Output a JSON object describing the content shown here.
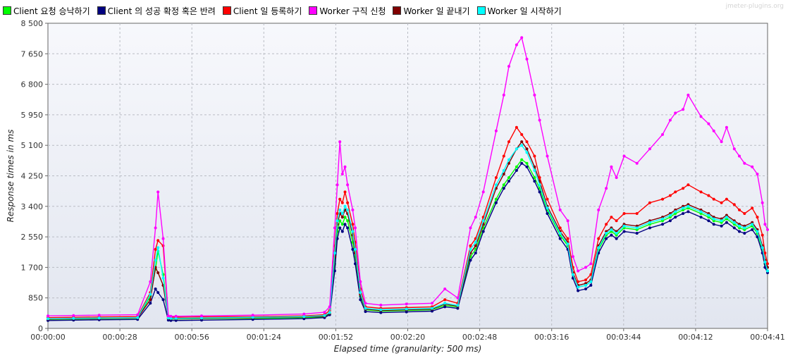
{
  "watermark": "jmeter-plugins.org",
  "chart_data": {
    "type": "line",
    "title": "",
    "xlabel": "Elapsed time (granularity: 500 ms)",
    "ylabel": "Response times in ms",
    "ylim": [
      0,
      8500
    ],
    "xlim_seconds": [
      0,
      281
    ],
    "y_ticks": [
      "0",
      "850",
      "1 700",
      "2 550",
      "3 400",
      "4 250",
      "5 100",
      "5 950",
      "6 800",
      "7 650",
      "8 500"
    ],
    "x_ticks": [
      "00:00:00",
      "00:00:28",
      "00:00:56",
      "00:01:24",
      "00:01:52",
      "00:02:20",
      "00:02:48",
      "00:03:16",
      "00:03:44",
      "00:04:12",
      "00:04:41"
    ],
    "grid": true,
    "legend_position": "top",
    "x_seconds": [
      0,
      10,
      20,
      35,
      40,
      42,
      43,
      45,
      47,
      48,
      50,
      60,
      80,
      100,
      108,
      110,
      112,
      113,
      114,
      115,
      116,
      117,
      119,
      120,
      122,
      124,
      130,
      140,
      150,
      155,
      160,
      165,
      167,
      170,
      175,
      178,
      180,
      183,
      185,
      187,
      190,
      192,
      195,
      200,
      203,
      205,
      207,
      210,
      212,
      215,
      218,
      220,
      222,
      225,
      230,
      235,
      240,
      243,
      245,
      248,
      250,
      255,
      258,
      260,
      263,
      265,
      268,
      270,
      272,
      275,
      277,
      279,
      280,
      281
    ],
    "series": [
      {
        "name": "Client 요청 승낙하기",
        "color": "#00ff00",
        "values": [
          250,
          260,
          270,
          280,
          900,
          1650,
          2150,
          1500,
          270,
          260,
          260,
          270,
          280,
          300,
          320,
          400,
          1800,
          2700,
          3000,
          2900,
          3100,
          3000,
          2400,
          2000,
          900,
          520,
          480,
          500,
          520,
          640,
          600,
          2000,
          2200,
          2800,
          3600,
          4000,
          4200,
          4500,
          4700,
          4600,
          4200,
          3900,
          3300,
          2600,
          2300,
          1500,
          1150,
          1200,
          1300,
          2200,
          2600,
          2700,
          2600,
          2800,
          2750,
          2900,
          3000,
          3100,
          3200,
          3300,
          3350,
          3200,
          3100,
          3000,
          2950,
          3050,
          2900,
          2800,
          2750,
          2850,
          2650,
          2200,
          1800,
          1600
        ]
      },
      {
        "name": "Client 의 성공 확정 혹은 반려",
        "color": "#000080",
        "values": [
          220,
          230,
          240,
          250,
          700,
          1100,
          1000,
          800,
          230,
          220,
          220,
          230,
          250,
          270,
          300,
          380,
          1600,
          2500,
          2800,
          2700,
          2900,
          2800,
          2200,
          1800,
          800,
          470,
          440,
          460,
          480,
          600,
          560,
          1900,
          2100,
          2700,
          3500,
          3900,
          4100,
          4400,
          4600,
          4500,
          4100,
          3800,
          3200,
          2500,
          2200,
          1400,
          1050,
          1100,
          1200,
          2100,
          2500,
          2600,
          2500,
          2700,
          2650,
          2800,
          2900,
          3000,
          3100,
          3200,
          3250,
          3100,
          3000,
          2900,
          2850,
          2950,
          2800,
          2700,
          2650,
          2750,
          2550,
          2100,
          1700,
          1550
        ]
      },
      {
        "name": "Client 일 등록하기",
        "color": "#ff0000",
        "values": [
          300,
          310,
          320,
          330,
          1000,
          2200,
          2450,
          2300,
          320,
          310,
          310,
          320,
          330,
          350,
          380,
          500,
          2300,
          3200,
          3600,
          3500,
          3800,
          3500,
          2900,
          2400,
          1100,
          600,
          560,
          580,
          600,
          800,
          700,
          2300,
          2500,
          3100,
          4200,
          4800,
          5200,
          5600,
          5400,
          5200,
          4800,
          4200,
          3600,
          2800,
          2500,
          1700,
          1300,
          1350,
          1500,
          2500,
          2900,
          3100,
          3000,
          3200,
          3200,
          3500,
          3600,
          3700,
          3800,
          3900,
          4000,
          3800,
          3700,
          3600,
          3500,
          3600,
          3450,
          3300,
          3200,
          3350,
          3100,
          2600,
          2100,
          1800
        ]
      },
      {
        "name": "Worker 구직 신청",
        "color": "#ff00ff",
        "values": [
          350,
          360,
          370,
          380,
          1300,
          2800,
          3800,
          2500,
          350,
          340,
          340,
          350,
          370,
          400,
          450,
          600,
          2800,
          4000,
          5200,
          4300,
          4500,
          4000,
          3300,
          2800,
          1300,
          700,
          650,
          680,
          700,
          1100,
          850,
          2800,
          3100,
          3800,
          5500,
          6500,
          7300,
          7900,
          8100,
          7500,
          6500,
          5800,
          4800,
          3300,
          3000,
          2000,
          1600,
          1700,
          1800,
          3300,
          3900,
          4500,
          4200,
          4800,
          4600,
          5000,
          5400,
          5800,
          6000,
          6100,
          6500,
          5900,
          5700,
          5500,
          5200,
          5600,
          5000,
          4800,
          4600,
          4500,
          4300,
          3500,
          2900,
          2750
        ]
      },
      {
        "name": "Worker 일 끝내기",
        "color": "#800000",
        "values": [
          260,
          270,
          280,
          290,
          800,
          1700,
          1550,
          1200,
          280,
          270,
          270,
          280,
          300,
          320,
          340,
          420,
          2000,
          2900,
          3200,
          3100,
          3300,
          3200,
          2600,
          2100,
          950,
          540,
          500,
          520,
          540,
          680,
          620,
          2100,
          2300,
          2900,
          3900,
          4300,
          4600,
          5000,
          5200,
          5000,
          4500,
          4100,
          3400,
          2700,
          2400,
          1550,
          1200,
          1250,
          1350,
          2300,
          2700,
          2800,
          2700,
          2900,
          2850,
          3000,
          3100,
          3200,
          3300,
          3400,
          3450,
          3300,
          3200,
          3100,
          3050,
          3150,
          3000,
          2900,
          2850,
          2950,
          2750,
          2300,
          1900,
          1700
        ]
      },
      {
        "name": "Worker 일 시작하기",
        "color": "#00ffff",
        "values": [
          270,
          280,
          290,
          300,
          950,
          1900,
          2250,
          1400,
          290,
          280,
          280,
          290,
          310,
          330,
          360,
          440,
          2100,
          3000,
          3300,
          3200,
          3400,
          3300,
          2700,
          2200,
          1000,
          560,
          520,
          540,
          560,
          700,
          640,
          2200,
          2400,
          3000,
          4000,
          4400,
          4700,
          5000,
          5100,
          4900,
          4400,
          4000,
          3350,
          2650,
          2350,
          1500,
          1150,
          1200,
          1300,
          2250,
          2650,
          2750,
          2650,
          2850,
          2800,
          2950,
          3050,
          3150,
          3250,
          3350,
          3400,
          3250,
          3150,
          3050,
          3000,
          3100,
          2950,
          2850,
          2800,
          2900,
          2700,
          2250,
          1850,
          1600
        ]
      }
    ]
  }
}
